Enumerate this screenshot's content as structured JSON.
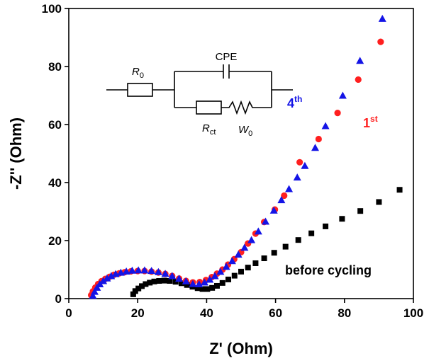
{
  "chart_data": {
    "type": "scatter",
    "xlabel": "Z' (Ohm)",
    "ylabel": "-Z'' (Ohm)",
    "xlim": [
      0,
      100
    ],
    "xticks": [
      0,
      20,
      40,
      60,
      80,
      100
    ],
    "ylim": [
      0,
      100
    ],
    "yticks": [
      0,
      20,
      40,
      60,
      80,
      100
    ],
    "series": [
      {
        "name": "before cycling",
        "color": "#000000",
        "marker": "square",
        "x": [
          18.7,
          19.3,
          20.2,
          21.2,
          22.3,
          23.5,
          24.8,
          26.2,
          27.7,
          29.3,
          31,
          32.7,
          34.3,
          35.9,
          37.4,
          38.8,
          40.2,
          41.6,
          43,
          44.6,
          46.3,
          48.1,
          50,
          52,
          54.2,
          56.7,
          59.6,
          62.9,
          66.6,
          70.4,
          74.5,
          79.3,
          84.6,
          90,
          96
        ],
        "values": [
          1.5,
          2.6,
          3.5,
          4.3,
          5,
          5.5,
          5.9,
          6.1,
          6.2,
          6.1,
          5.8,
          5.3,
          4.7,
          4.1,
          3.6,
          3.3,
          3.3,
          3.7,
          4.4,
          5.4,
          6.6,
          7.9,
          9.3,
          10.7,
          12.2,
          13.9,
          15.8,
          17.9,
          20.2,
          22.5,
          24.9,
          27.5,
          30.2,
          33.3,
          37.5
        ]
      },
      {
        "name": "1",
        "name_sup": "st",
        "color": "#ff1f1f",
        "marker": "circle",
        "x": [
          6.5,
          7,
          7.7,
          8.5,
          9.5,
          10.6,
          11.8,
          13.1,
          14.6,
          16.2,
          18,
          20,
          22,
          24,
          26,
          28,
          30,
          32,
          34,
          36,
          38,
          39.8,
          41.5,
          43,
          44.6,
          46.2,
          48,
          50,
          52,
          54.2,
          56.7,
          59.8,
          62.5,
          67,
          72.5,
          78,
          84,
          90.5
        ],
        "values": [
          1.2,
          2.5,
          3.8,
          5,
          6,
          6.8,
          7.5,
          8.2,
          8.7,
          9.1,
          9.4,
          9.5,
          9.5,
          9.3,
          9,
          8.5,
          7.8,
          6.9,
          6.1,
          5.6,
          5.7,
          6.4,
          7.4,
          8.6,
          10,
          11.7,
          13.6,
          16,
          19,
          22.4,
          26.4,
          30.7,
          35.5,
          47,
          55,
          64,
          75.5,
          88.5
        ]
      },
      {
        "name": "4",
        "name_sup": "th",
        "color": "#1414e6",
        "marker": "triangle",
        "x": [
          7,
          7.5,
          8.2,
          9,
          10,
          11.1,
          12.3,
          13.6,
          15.1,
          16.7,
          18.4,
          20.2,
          22,
          24,
          26,
          28,
          30,
          32,
          34,
          36,
          37.8,
          39.4,
          40.9,
          42.4,
          44,
          45.7,
          47.4,
          49.2,
          51,
          53,
          55,
          57.1,
          59.5,
          61.7,
          63.9,
          66.3,
          68.5,
          71.5,
          74.5,
          79.5,
          84.5,
          91
        ],
        "values": [
          1,
          2.4,
          3.8,
          5,
          6.1,
          7,
          7.8,
          8.5,
          9,
          9.4,
          9.7,
          9.8,
          9.8,
          9.6,
          9.2,
          8.6,
          7.8,
          6.9,
          6,
          5.1,
          5,
          5.6,
          6.6,
          7.8,
          9.3,
          11,
          13,
          15.2,
          17.6,
          20.2,
          23.2,
          26.6,
          30.4,
          34,
          37.8,
          41.8,
          45.8,
          52,
          59.5,
          70,
          82,
          96.5
        ]
      }
    ],
    "circuit": {
      "r0": "R",
      "r0_sub": "0",
      "cpe": "CPE",
      "rct": "R",
      "rct_sub": "ct",
      "w0": "W",
      "w0_sub": "0"
    }
  }
}
